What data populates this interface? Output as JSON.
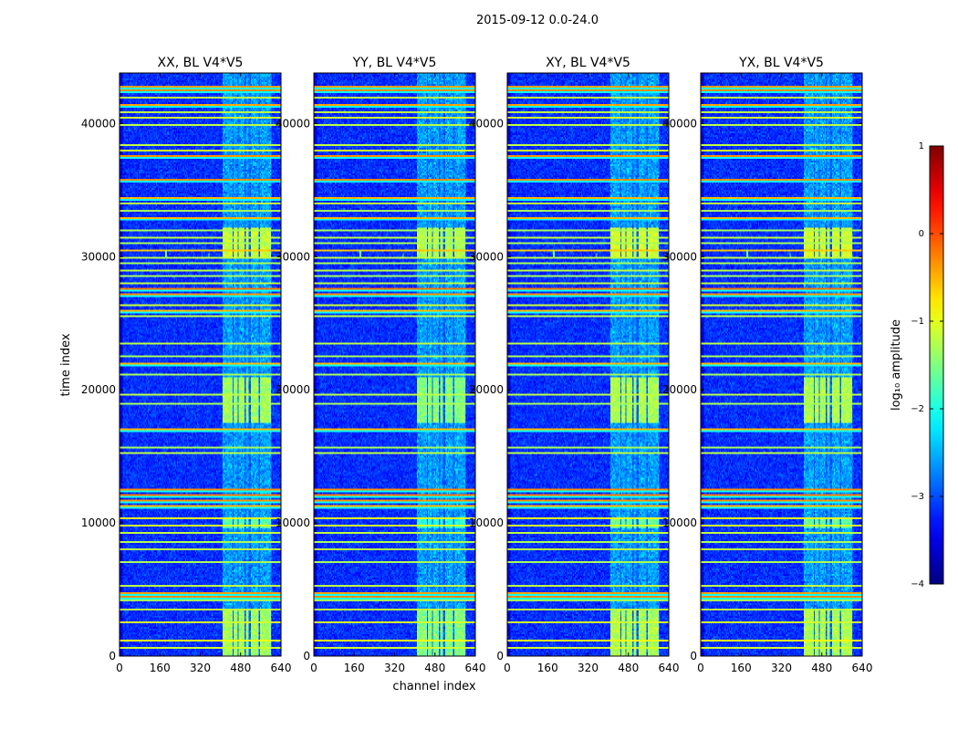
{
  "suptitle": "2015-09-12 0.0-24.0",
  "chart_data": {
    "type": "heatmap",
    "xlabel": "channel index",
    "ylabel": "time index",
    "xlim": [
      0,
      640
    ],
    "ylim": [
      0,
      43800
    ],
    "xticks": [
      0,
      160,
      320,
      480,
      640
    ],
    "yticks": [
      0,
      10000,
      20000,
      30000,
      40000
    ],
    "panels": [
      {
        "title": "XX, BL V4*V5",
        "rfi_strength": 0.9
      },
      {
        "title": "YY, BL V4*V5",
        "rfi_strength": 1.1
      },
      {
        "title": "XY, BL V4*V5",
        "rfi_strength": 0.85
      },
      {
        "title": "YX, BL V4*V5",
        "rfi_strength": 0.85
      }
    ],
    "rfi_band_channels": [
      405,
      600
    ],
    "rfi_columns": [
      [
        405,
        445
      ],
      [
        450,
        465
      ],
      [
        470,
        492
      ],
      [
        497,
        510
      ],
      [
        520,
        548
      ],
      [
        556,
        568
      ],
      [
        572,
        596
      ]
    ],
    "rfi_time_rows": [
      {
        "t": 500,
        "v": -1.1
      },
      {
        "t": 1100,
        "v": -0.9
      },
      {
        "t": 2500,
        "v": -1.1
      },
      {
        "t": 3500,
        "v": -1.2
      },
      {
        "t": 4100,
        "v": -1.3
      },
      {
        "t": 4400,
        "v": -0.3
      },
      {
        "t": 4700,
        "v": -0.4
      },
      {
        "t": 5200,
        "v": -1.2
      },
      {
        "t": 7000,
        "v": -1.3
      },
      {
        "t": 8000,
        "v": -1.2
      },
      {
        "t": 8500,
        "v": -1.3
      },
      {
        "t": 9200,
        "v": -1.2
      },
      {
        "t": 9800,
        "v": -1.1
      },
      {
        "t": 10300,
        "v": -1.0
      },
      {
        "t": 11200,
        "v": -0.5
      },
      {
        "t": 11700,
        "v": -0.3
      },
      {
        "t": 12100,
        "v": -0.2
      },
      {
        "t": 12500,
        "v": -0.3
      },
      {
        "t": 15300,
        "v": -1.2
      },
      {
        "t": 15700,
        "v": -1.3
      },
      {
        "t": 17000,
        "v": -0.5
      },
      {
        "t": 18900,
        "v": -1.3
      },
      {
        "t": 19700,
        "v": -1.2
      },
      {
        "t": 21200,
        "v": -1.3
      },
      {
        "t": 22000,
        "v": -0.5
      },
      {
        "t": 22500,
        "v": -1.3
      },
      {
        "t": 23500,
        "v": -1.2
      },
      {
        "t": 25500,
        "v": -1.2
      },
      {
        "t": 26000,
        "v": -0.5
      },
      {
        "t": 26300,
        "v": -1.1
      },
      {
        "t": 27200,
        "v": -0.3
      },
      {
        "t": 27600,
        "v": -0.2
      },
      {
        "t": 28000,
        "v": -1.2
      },
      {
        "t": 28500,
        "v": -1.3
      },
      {
        "t": 29000,
        "v": -1.2
      },
      {
        "t": 29500,
        "v": -1.3
      },
      {
        "t": 30000,
        "v": -1.2
      },
      {
        "t": 30500,
        "v": -0.6
      },
      {
        "t": 31000,
        "v": -1.3
      },
      {
        "t": 31500,
        "v": -1.2
      },
      {
        "t": 32000,
        "v": -1.3
      },
      {
        "t": 33000,
        "v": -0.5
      },
      {
        "t": 33500,
        "v": -1.3
      },
      {
        "t": 34000,
        "v": -1.2
      },
      {
        "t": 34500,
        "v": -0.5
      },
      {
        "t": 35800,
        "v": -0.3
      },
      {
        "t": 37600,
        "v": -0.3
      },
      {
        "t": 38000,
        "v": -1.1
      },
      {
        "t": 38400,
        "v": -1.2
      },
      {
        "t": 40000,
        "v": -1.2
      },
      {
        "t": 40500,
        "v": -1.1
      },
      {
        "t": 40900,
        "v": -1.2
      },
      {
        "t": 41500,
        "v": -0.4
      },
      {
        "t": 42000,
        "v": -1.2
      },
      {
        "t": 42500,
        "v": -0.3
      },
      {
        "t": 42900,
        "v": -0.4
      }
    ],
    "colorbar": {
      "label": "log₁₀ amplitude",
      "colormap": "jet",
      "range": [
        -4,
        1
      ],
      "ticks": [
        {
          "v": 1,
          "label": "1"
        },
        {
          "v": 0,
          "label": "0"
        },
        {
          "v": -1,
          "label": "−1"
        },
        {
          "v": -2,
          "label": "−2"
        },
        {
          "v": -3,
          "label": "−3"
        },
        {
          "v": -4,
          "label": "−4"
        }
      ]
    }
  }
}
